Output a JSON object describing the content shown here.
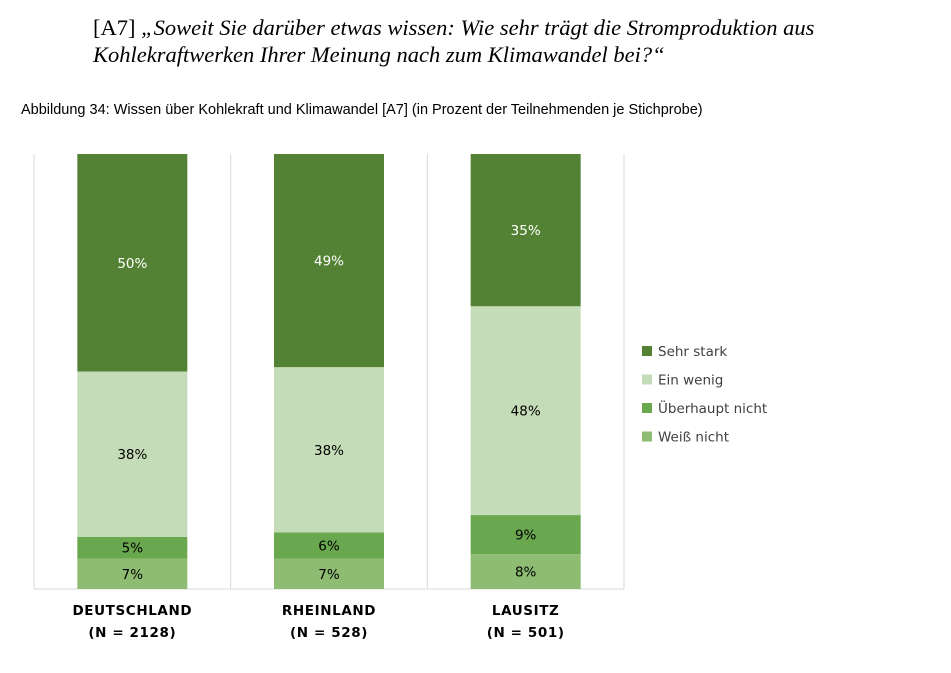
{
  "question": {
    "id": "[A7]",
    "text": "„Soweit Sie darüber etwas wissen: Wie sehr trägt die Stromproduktion aus Kohlekraftwerken Ihrer Meinung nach zum Klimawandel bei?“"
  },
  "caption": "Abbildung 34: Wissen über Kohlekraft und Klimawandel [A7] (in Prozent der Teilnehmenden je Stichprobe)",
  "chart_data": {
    "type": "bar",
    "stacked": true,
    "orientation": "vertical",
    "categories": [
      {
        "name": "DEUTSCHLAND",
        "n": "(N = 2128)"
      },
      {
        "name": "RHEINLAND",
        "n": "(N = 528)"
      },
      {
        "name": "LAUSITZ",
        "n": "(N = 501)"
      }
    ],
    "series": [
      {
        "name": "Weiß nicht",
        "color": "#8fbc73",
        "label_color": "#000000",
        "values": [
          7,
          7,
          8
        ]
      },
      {
        "name": "Überhaupt nicht",
        "color": "#6aa84f",
        "label_color": "#000000",
        "values": [
          5,
          6,
          9
        ]
      },
      {
        "name": "Ein wenig",
        "color": "#c5dcb8",
        "label_color": "#000000",
        "values": [
          38,
          38,
          48
        ]
      },
      {
        "name": "Sehr stark",
        "color": "#548235",
        "label_color": "#ffffff",
        "values": [
          50,
          49,
          35
        ]
      }
    ],
    "legend_order": [
      "Sehr stark",
      "Ein wenig",
      "Überhaupt nicht",
      "Weiß nicht"
    ],
    "legend_position": "right",
    "value_suffix": "%",
    "ylim": [
      0,
      100
    ],
    "grid": false
  }
}
